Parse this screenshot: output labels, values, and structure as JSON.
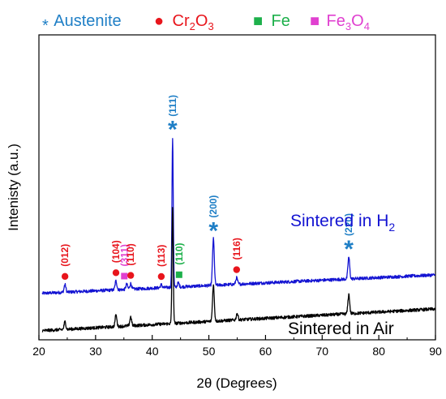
{
  "chart_data": {
    "type": "line",
    "xlabel": "2θ (Degrees)",
    "ylabel": "Intenisty (a.u.)",
    "xlim": [
      20,
      90
    ],
    "xticks": [
      "20",
      "30",
      "40",
      "50",
      "60",
      "70",
      "80",
      "90"
    ],
    "grid": false,
    "legend": {
      "placement": "top",
      "items": [
        {
          "marker": "*",
          "text": "Austenite",
          "color": "#1f7fc6"
        },
        {
          "marker": "●",
          "text": "Cr",
          "sub": "2",
          "text2": "O",
          "sub2": "3",
          "color": "#e8151c"
        },
        {
          "marker": "■",
          "text": "Fe",
          "color": "#1db04b"
        },
        {
          "marker": "■",
          "text": "Fe",
          "sub": "3",
          "text2": "O",
          "sub2": "4",
          "color": "#e040d0"
        }
      ]
    },
    "series": [
      {
        "name_main": "Sintered in H",
        "name_sub": "2",
        "color": "#1414d2",
        "baseline": 0.145,
        "baseline_slope": 0.072,
        "peaks": [
          {
            "x": 24.6,
            "h": 0.03
          },
          {
            "x": 33.6,
            "h": 0.035
          },
          {
            "x": 35.5,
            "h": 0.02
          },
          {
            "x": 36.2,
            "h": 0.022
          },
          {
            "x": 41.6,
            "h": 0.012
          },
          {
            "x": 43.6,
            "h": 0.58
          },
          {
            "x": 44.6,
            "h": 0.016
          },
          {
            "x": 50.8,
            "h": 0.18
          },
          {
            "x": 54.9,
            "h": 0.025
          },
          {
            "x": 74.7,
            "h": 0.085
          }
        ]
      },
      {
        "name": "Sintered in Air",
        "color": "#000000",
        "baseline": 0.0,
        "baseline_slope": 0.085,
        "peaks": [
          {
            "x": 24.6,
            "h": 0.03
          },
          {
            "x": 33.6,
            "h": 0.045
          },
          {
            "x": 36.2,
            "h": 0.035
          },
          {
            "x": 43.6,
            "h": 0.45
          },
          {
            "x": 50.8,
            "h": 0.14
          },
          {
            "x": 55.0,
            "h": 0.025
          },
          {
            "x": 74.7,
            "h": 0.075
          }
        ]
      }
    ],
    "annotations": [
      {
        "x": 24.6,
        "phase": "Cr2O3",
        "hkl": "(012)",
        "color": "#e8151c"
      },
      {
        "x": 33.6,
        "phase": "Cr2O3",
        "hkl": "(104)",
        "color": "#e8151c"
      },
      {
        "x": 35.5,
        "phase": "Fe3O4",
        "hkl": "(311)",
        "color": "#e040d0"
      },
      {
        "x": 36.2,
        "phase": "Cr2O3",
        "hkl": "(110)",
        "color": "#e8151c"
      },
      {
        "x": 41.6,
        "phase": "Cr2O3",
        "hkl": "(113)",
        "color": "#e8151c"
      },
      {
        "x": 43.6,
        "phase": "Austenite",
        "hkl": "(111)",
        "color": "#1f7fc6"
      },
      {
        "x": 44.6,
        "phase": "Fe",
        "hkl": "(110)",
        "color": "#1db04b"
      },
      {
        "x": 50.8,
        "phase": "Austenite",
        "hkl": "(200)",
        "color": "#1f7fc6"
      },
      {
        "x": 54.9,
        "phase": "Cr2O3",
        "hkl": "(116)",
        "color": "#e8151c"
      },
      {
        "x": 74.7,
        "phase": "Austenite",
        "hkl": "(220)",
        "color": "#1f7fc6"
      }
    ]
  }
}
